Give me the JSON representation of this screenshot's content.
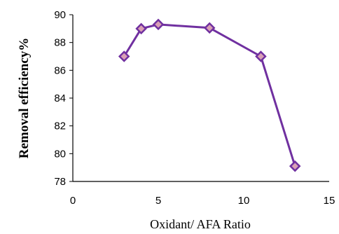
{
  "chart_data": {
    "type": "line",
    "title": "",
    "xlabel": "Oxidant/ AFA Ratio",
    "ylabel": "Removal efficiency%",
    "xlim": [
      0,
      15
    ],
    "ylim": [
      78,
      90
    ],
    "xticks": [
      0,
      5,
      10,
      15
    ],
    "yticks": [
      78,
      80,
      82,
      84,
      86,
      88,
      90
    ],
    "grid": false,
    "legend": "none",
    "series": [
      {
        "x": [
          3,
          4,
          5,
          8,
          11,
          13
        ],
        "y": [
          87.0,
          89.0,
          89.3,
          89.05,
          87.0,
          79.1
        ],
        "color": "#7030A0",
        "marker": "diamond",
        "marker_fill": "#D9A0B5"
      }
    ],
    "axis_color": "#000000"
  }
}
